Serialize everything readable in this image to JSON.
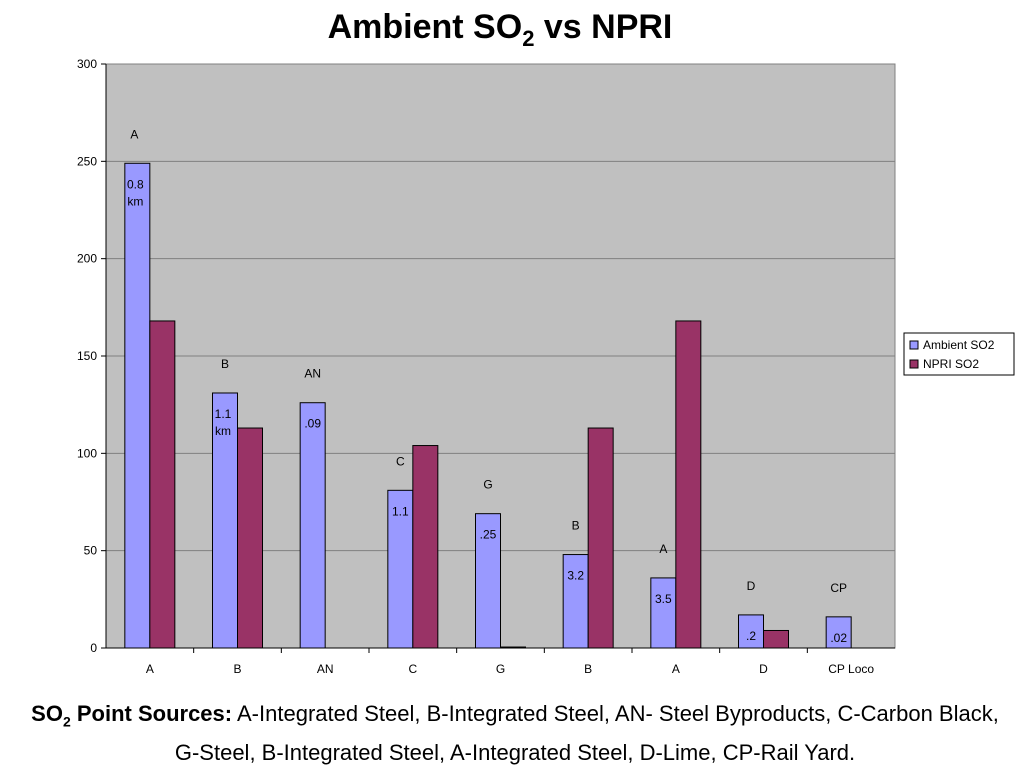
{
  "header": {
    "title_main": "Ambient SO",
    "title_sub": "2",
    "title_rest": " vs NPRI"
  },
  "caption": {
    "bold_main": "SO",
    "bold_sub": "2",
    "bold_rest": " Point Sources:",
    "text": " A-Integrated Steel, B-Integrated Steel, AN- Steel Byproducts, C-Carbon Black, G-Steel, B-Integrated Steel, A-Integrated Steel, D-Lime, CP-Rail Yard."
  },
  "colors": {
    "ambient": "#9999ff",
    "npri": "#993366",
    "plot_bg": "#c0c0c0",
    "grid": "#808080"
  },
  "chart_data": {
    "type": "bar",
    "title": "Ambient SO2 vs NPRI",
    "categories": [
      "A",
      "B",
      "AN",
      "C",
      "G",
      "B",
      "A",
      "D",
      "CP Loco"
    ],
    "series": [
      {
        "name": "Ambient SO2",
        "values": [
          249,
          131,
          126,
          81,
          69,
          48,
          36,
          17,
          16
        ]
      },
      {
        "name": "NPRI SO2",
        "values": [
          168,
          113,
          0,
          104,
          0.5,
          113,
          168,
          9,
          0
        ]
      }
    ],
    "ylim": [
      0,
      300
    ],
    "yticks": [
      0,
      50,
      100,
      150,
      200,
      250,
      300
    ],
    "grid": true,
    "legend_position": "right",
    "source_labels": [
      "A",
      "B",
      "AN",
      "C",
      "G",
      "B",
      "A",
      "D",
      "CP"
    ],
    "distance_labels": [
      [
        "0.8",
        "km"
      ],
      [
        "1.1",
        "km"
      ],
      [
        ".09"
      ],
      [
        "1.1"
      ],
      [
        ".25"
      ],
      [
        "3.2"
      ],
      [
        "3.5"
      ],
      [
        ".2"
      ],
      [
        ".02"
      ]
    ]
  }
}
